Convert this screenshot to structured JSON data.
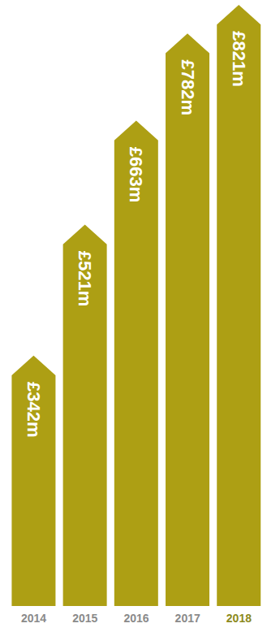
{
  "chart_data": {
    "type": "bar",
    "categories": [
      "2014",
      "2015",
      "2016",
      "2017",
      "2018"
    ],
    "values": [
      342,
      521,
      663,
      782,
      821
    ],
    "value_labels": [
      "£342m",
      "£521m",
      "£663m",
      "£782m",
      "£821m"
    ],
    "color": "#ad9f14",
    "data_labels": true,
    "tick_labels": "x"
  }
}
